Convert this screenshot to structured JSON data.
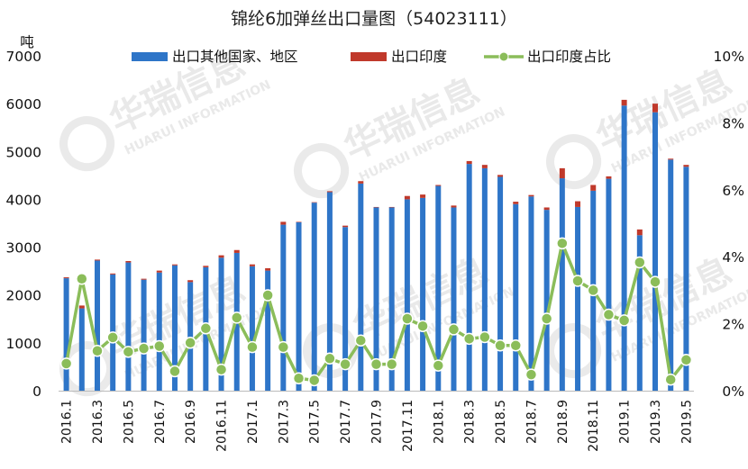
{
  "chart_data": {
    "type": "bar",
    "title": "锦纶6加弹丝出口量图（54023111）",
    "ylabel": "吨",
    "ylim": [
      0,
      7000
    ],
    "y2lim": [
      0,
      10
    ],
    "yticks": [
      0,
      1000,
      2000,
      3000,
      4000,
      5000,
      6000,
      7000
    ],
    "y2ticks": [
      "0%",
      "2%",
      "4%",
      "6%",
      "8%",
      "10%"
    ],
    "y2tick_values": [
      0,
      2,
      4,
      6,
      8,
      10
    ],
    "categories": [
      "2016.1",
      "2016.2",
      "2016.3",
      "2016.4",
      "2016.5",
      "2016.6",
      "2016.7",
      "2016.8",
      "2016.9",
      "2016.10",
      "2016.11",
      "2016.12",
      "2017.1",
      "2017.2",
      "2017.3",
      "2017.4",
      "2017.5",
      "2017.6",
      "2017.7",
      "2017.8",
      "2017.9",
      "2017.10",
      "2017.11",
      "2017.12",
      "2018.1",
      "2018.2",
      "2018.3",
      "2018.4",
      "2018.5",
      "2018.6",
      "2018.7",
      "2018.8",
      "2018.9",
      "2018.10",
      "2018.11",
      "2018.12",
      "2019.1",
      "2019.2",
      "2019.3",
      "2019.4",
      "2019.5"
    ],
    "xtick_labels": [
      "2016.1",
      "2016.3",
      "2016.5",
      "2016.7",
      "2016.9",
      "2016.11",
      "2017.1",
      "2017.3",
      "2017.5",
      "2017.7",
      "2017.9",
      "2017.11",
      "2018.1",
      "2018.3",
      "2018.5",
      "2018.7",
      "2018.9",
      "2018.11",
      "2019.1",
      "2019.3",
      "2019.5"
    ],
    "series": [
      {
        "name": "出口其他国家、地区",
        "kind": "bar-stack",
        "color": "#2e75c8",
        "values": [
          2350,
          1720,
          2720,
          2430,
          2680,
          2320,
          2470,
          2620,
          2270,
          2580,
          2780,
          2880,
          2600,
          2510,
          3470,
          3520,
          3930,
          4150,
          3420,
          4330,
          3830,
          3830,
          4000,
          4030,
          4280,
          3830,
          4740,
          4650,
          4470,
          3900,
          4060,
          3780,
          4440,
          3840,
          4180,
          4430,
          5960,
          3250,
          5820,
          4830,
          4680
        ]
      },
      {
        "name": "出口印度",
        "kind": "bar-stack",
        "color": "#c0392b",
        "values": [
          20,
          60,
          20,
          20,
          30,
          20,
          40,
          20,
          40,
          30,
          50,
          60,
          40,
          50,
          60,
          10,
          10,
          20,
          30,
          50,
          10,
          10,
          70,
          70,
          20,
          40,
          60,
          70,
          40,
          50,
          30,
          50,
          210,
          120,
          120,
          50,
          120,
          120,
          180,
          20,
          40
        ]
      },
      {
        "name": "出口印度占比",
        "kind": "line",
        "axis": "right",
        "color": "#8bbd5a",
        "values": [
          0.81,
          3.34,
          1.19,
          1.59,
          1.16,
          1.26,
          1.33,
          0.58,
          1.43,
          1.86,
          0.63,
          2.18,
          1.3,
          2.85,
          1.3,
          0.37,
          0.31,
          0.96,
          0.79,
          1.5,
          0.79,
          0.79,
          2.15,
          1.93,
          0.75,
          1.83,
          1.55,
          1.6,
          1.35,
          1.35,
          0.48,
          2.15,
          4.4,
          3.28,
          3.0,
          2.27,
          2.1,
          3.83,
          3.25,
          0.33,
          0.92
        ]
      }
    ],
    "legend_position": "top",
    "grid": false
  },
  "watermark": {
    "cn": "华瑞信息",
    "en": "HUARUI INFORMATION"
  }
}
